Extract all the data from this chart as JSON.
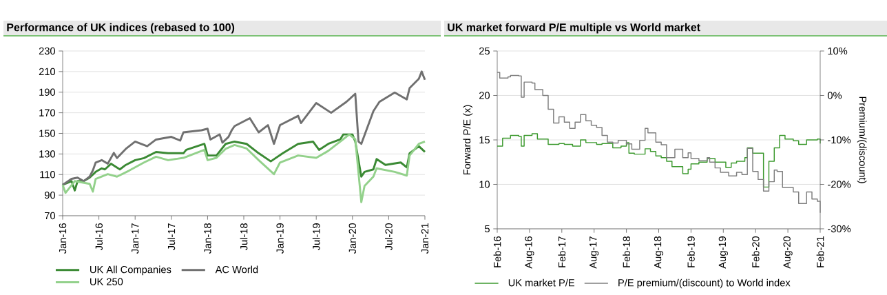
{
  "chart_data": [
    {
      "type": "line",
      "title": "Performance of UK indices (rebased to 100)",
      "xlim": [
        "2016-01-01",
        "2021-01-01"
      ],
      "xticks": [
        {
          "value": "2016-01-01",
          "label": "Jan-16"
        },
        {
          "value": "2016-07-01",
          "label": "Jul-16"
        },
        {
          "value": "2017-01-01",
          "label": "Jan-17"
        },
        {
          "value": "2017-07-01",
          "label": "Jul-17"
        },
        {
          "value": "2018-01-01",
          "label": "Jan-18"
        },
        {
          "value": "2018-07-01",
          "label": "Jul-18"
        },
        {
          "value": "2019-01-01",
          "label": "Jan-19"
        },
        {
          "value": "2019-07-01",
          "label": "Jul-19"
        },
        {
          "value": "2020-01-01",
          "label": "Jan-20"
        },
        {
          "value": "2020-07-01",
          "label": "Jul-20"
        },
        {
          "value": "2021-01-01",
          "label": "Jan-21"
        }
      ],
      "ylim": [
        70,
        230
      ],
      "yticks": [
        70,
        90,
        110,
        130,
        150,
        170,
        190,
        210,
        230
      ],
      "grid": "y",
      "legend": "bottom",
      "series": [
        {
          "name": "UK All Companies",
          "color": "#3b8a34",
          "x": [
            "2016-01-01",
            "2016-02-15",
            "2016-03-01",
            "2016-03-15",
            "2016-04-15",
            "2016-05-15",
            "2016-06-15",
            "2016-07-15",
            "2016-08-01",
            "2016-09-01",
            "2016-10-15",
            "2016-11-15",
            "2017-01-01",
            "2017-02-15",
            "2017-04-15",
            "2017-06-15",
            "2017-09-01",
            "2017-09-15",
            "2017-12-15",
            "2018-01-01",
            "2018-02-15",
            "2018-04-01",
            "2018-05-15",
            "2018-07-15",
            "2018-09-15",
            "2018-11-15",
            "2019-01-15",
            "2019-04-01",
            "2019-06-15",
            "2019-07-15",
            "2019-09-01",
            "2019-11-01",
            "2019-11-15",
            "2020-01-01",
            "2020-01-15",
            "2020-02-15",
            "2020-03-01",
            "2020-04-15",
            "2020-05-01",
            "2020-06-15",
            "2020-09-01",
            "2020-10-01",
            "2020-10-15",
            "2020-12-01",
            "2021-01-01"
          ],
          "values": [
            100,
            103.6,
            94.5,
            103.6,
            103.6,
            107,
            112.6,
            116,
            115,
            120.5,
            115,
            119.4,
            124,
            126,
            131.9,
            130.7,
            130.7,
            134,
            139.8,
            128.5,
            128.5,
            139.8,
            142,
            139.8,
            130.7,
            122.8,
            130.7,
            139.8,
            142,
            134,
            139.8,
            144.3,
            148.9,
            148.9,
            142,
            108,
            112.6,
            115,
            125,
            119.4,
            121.7,
            117,
            130.7,
            137.5,
            132
          ]
        },
        {
          "name": "AC World",
          "color": "#707070",
          "x": [
            "2016-01-01",
            "2016-02-15",
            "2016-03-15",
            "2016-04-15",
            "2016-05-15",
            "2016-06-01",
            "2016-06-15",
            "2016-07-15",
            "2016-08-15",
            "2016-09-15",
            "2016-10-01",
            "2016-11-15",
            "2017-01-01",
            "2017-03-01",
            "2017-04-15",
            "2017-07-01",
            "2017-08-15",
            "2017-09-01",
            "2017-12-01",
            "2018-01-01",
            "2018-01-15",
            "2018-03-01",
            "2018-03-15",
            "2018-04-15",
            "2018-05-01",
            "2018-05-15",
            "2018-08-01",
            "2018-09-15",
            "2018-11-01",
            "2018-12-01",
            "2019-01-01",
            "2019-04-01",
            "2019-04-15",
            "2019-07-01",
            "2019-09-15",
            "2019-12-01",
            "2020-01-15",
            "2020-02-01",
            "2020-02-15",
            "2020-04-15",
            "2020-05-15",
            "2020-08-01",
            "2020-10-01",
            "2020-10-15",
            "2020-12-01",
            "2020-12-15",
            "2021-01-01"
          ],
          "values": [
            100,
            105.8,
            107,
            103.6,
            108,
            114,
            121.7,
            124,
            120.5,
            131,
            126,
            135,
            142,
            137.5,
            144,
            146.6,
            143,
            151,
            153,
            154.5,
            144,
            149,
            141,
            146.6,
            153,
            157,
            164.7,
            151,
            158,
            139.8,
            158,
            167,
            160,
            179.5,
            170,
            180.6,
            188.5,
            142,
            139.8,
            171.6,
            180.6,
            189.7,
            183,
            194,
            203,
            210,
            202
          ]
        },
        {
          "name": "UK 250",
          "color": "#93d18b",
          "x": [
            "2016-01-01",
            "2016-01-15",
            "2016-03-01",
            "2016-05-15",
            "2016-06-01",
            "2016-06-15",
            "2016-08-15",
            "2016-10-01",
            "2016-12-01",
            "2017-02-15",
            "2017-04-15",
            "2017-06-15",
            "2017-09-01",
            "2017-12-15",
            "2018-01-01",
            "2018-02-15",
            "2018-04-01",
            "2018-05-15",
            "2018-07-15",
            "2018-09-15",
            "2018-12-01",
            "2019-01-01",
            "2019-04-01",
            "2019-07-01",
            "2019-09-01",
            "2019-11-15",
            "2019-12-15",
            "2020-01-15",
            "2020-02-15",
            "2020-03-01",
            "2020-04-15",
            "2020-05-01",
            "2020-08-01",
            "2020-10-01",
            "2020-10-15",
            "2020-12-01",
            "2021-01-01"
          ],
          "values": [
            100,
            92.2,
            103.6,
            101,
            93.4,
            105.8,
            110.4,
            108,
            113.8,
            121.7,
            127.3,
            124,
            126.2,
            134,
            124,
            126.2,
            135,
            138.7,
            135.3,
            124,
            110.4,
            121.7,
            128.5,
            126.2,
            133,
            144.3,
            148.9,
            144.3,
            83.2,
            99,
            108,
            116,
            112.6,
            109,
            128.5,
            139.8,
            142
          ]
        }
      ]
    },
    {
      "type": "step",
      "title": "UK market forward P/E multiple vs World market",
      "ylabel": "Forward P/E (x)",
      "y2label": "Premium/(discount)",
      "xlim": [
        "2016-02-01",
        "2021-02-01"
      ],
      "xticks": [
        {
          "value": "2016-02-01",
          "label": "Feb-16"
        },
        {
          "value": "2016-08-01",
          "label": "Aug-16"
        },
        {
          "value": "2017-02-01",
          "label": "Feb-17"
        },
        {
          "value": "2017-08-01",
          "label": "Aug-17"
        },
        {
          "value": "2018-02-01",
          "label": "Feb-18"
        },
        {
          "value": "2018-08-01",
          "label": "Aug-18"
        },
        {
          "value": "2019-02-01",
          "label": "Feb-19"
        },
        {
          "value": "2019-08-01",
          "label": "Aug-19"
        },
        {
          "value": "2020-02-01",
          "label": "Feb-20"
        },
        {
          "value": "2020-08-01",
          "label": "Aug-20"
        },
        {
          "value": "2021-02-01",
          "label": "Feb-21"
        }
      ],
      "ylim": [
        5,
        25
      ],
      "yticks": [
        5,
        10,
        15,
        20,
        25
      ],
      "y2lim": [
        -30,
        10
      ],
      "y2ticks": [
        {
          "value": -30,
          "label": "-30%"
        },
        {
          "value": -20,
          "label": "-20%"
        },
        {
          "value": -10,
          "label": "-10%"
        },
        {
          "value": 0,
          "label": "0%"
        },
        {
          "value": 10,
          "label": "10%"
        }
      ],
      "grid": "y",
      "legend": "bottom",
      "series": [
        {
          "name": "UK market P/E",
          "color": "#3d9a2f",
          "x": [
            "2016-02-01",
            "2016-03-01",
            "2016-04-15",
            "2016-06-01",
            "2016-06-15",
            "2016-07-01",
            "2016-08-15",
            "2016-09-15",
            "2016-11-15",
            "2017-01-15",
            "2017-02-15",
            "2017-04-01",
            "2017-05-15",
            "2017-06-15",
            "2017-08-15",
            "2017-09-15",
            "2017-11-15",
            "2018-01-01",
            "2018-02-01",
            "2018-02-15",
            "2018-03-15",
            "2018-05-15",
            "2018-06-15",
            "2018-07-15",
            "2018-08-15",
            "2018-09-15",
            "2018-10-15",
            "2018-12-15",
            "2019-01-15",
            "2019-02-01",
            "2019-03-15",
            "2019-05-01",
            "2019-06-15",
            "2019-08-15",
            "2019-09-15",
            "2019-10-15",
            "2019-12-01",
            "2019-12-15",
            "2020-01-15",
            "2020-03-15",
            "2020-04-15",
            "2020-05-15",
            "2020-06-15",
            "2020-07-15",
            "2020-09-01",
            "2020-10-01",
            "2020-11-15",
            "2021-01-15",
            "2021-02-01"
          ],
          "values": [
            14.3,
            15.2,
            15.5,
            15.4,
            14.3,
            15.5,
            15.7,
            15.1,
            14.5,
            14.6,
            14.5,
            14.3,
            15.0,
            14.7,
            14.5,
            14.6,
            14.1,
            14.3,
            14.7,
            13.5,
            13.4,
            14.0,
            13.7,
            13.2,
            13.0,
            12.6,
            12.0,
            11.2,
            11.7,
            12.3,
            12.5,
            12.9,
            12.5,
            11.9,
            12.4,
            12.6,
            13.0,
            14.1,
            13.5,
            9.7,
            12.6,
            14.1,
            15.5,
            15.1,
            14.9,
            14.5,
            15.0,
            15.1,
            14.6
          ]
        },
        {
          "name": "P/E premium/(discount) to World index",
          "color": "#7f7f7f",
          "axis": "y2",
          "x": [
            "2016-02-01",
            "2016-02-15",
            "2016-04-01",
            "2016-04-15",
            "2016-06-01",
            "2016-06-15",
            "2016-07-01",
            "2016-08-15",
            "2016-09-01",
            "2016-10-15",
            "2016-11-15",
            "2016-12-15",
            "2017-01-15",
            "2017-02-15",
            "2017-03-15",
            "2017-04-15",
            "2017-05-15",
            "2017-06-15",
            "2017-07-15",
            "2017-08-15",
            "2017-09-15",
            "2017-10-15",
            "2017-11-15",
            "2017-12-15",
            "2018-02-01",
            "2018-03-01",
            "2018-04-15",
            "2018-05-15",
            "2018-06-01",
            "2018-07-15",
            "2018-08-15",
            "2018-09-15",
            "2018-11-01",
            "2018-12-15",
            "2019-01-15",
            "2019-02-01",
            "2019-03-15",
            "2019-05-01",
            "2019-05-15",
            "2019-06-15",
            "2019-07-15",
            "2019-09-01",
            "2019-10-15",
            "2019-11-15",
            "2019-12-15",
            "2020-01-15",
            "2020-02-15",
            "2020-03-15",
            "2020-04-15",
            "2020-05-15",
            "2020-06-01",
            "2020-07-01",
            "2020-09-01",
            "2020-10-01",
            "2020-11-15",
            "2020-12-15",
            "2021-01-15",
            "2021-02-01"
          ],
          "values": [
            5.2,
            3.9,
            4.2,
            4.5,
            4.4,
            -0.4,
            3.0,
            2.8,
            1.3,
            0.0,
            -3.1,
            -6.2,
            -4.8,
            -6.0,
            -7.4,
            -6.0,
            -4.3,
            -5.7,
            -6.7,
            -7.2,
            -9.0,
            -10.5,
            -10.7,
            -10.1,
            -10.9,
            -12.1,
            -10.1,
            -7.4,
            -8.4,
            -10.5,
            -11.1,
            -14.0,
            -12.1,
            -14.0,
            -12.9,
            -14.2,
            -14.7,
            -14.0,
            -15.0,
            -16.3,
            -17.3,
            -18.1,
            -17.3,
            -17.8,
            -11.9,
            -17.1,
            -18.9,
            -21.5,
            -19.4,
            -16.8,
            -17.1,
            -20.7,
            -21.7,
            -24.3,
            -21.7,
            -23.3,
            -23.8,
            -26.4
          ]
        }
      ]
    }
  ]
}
